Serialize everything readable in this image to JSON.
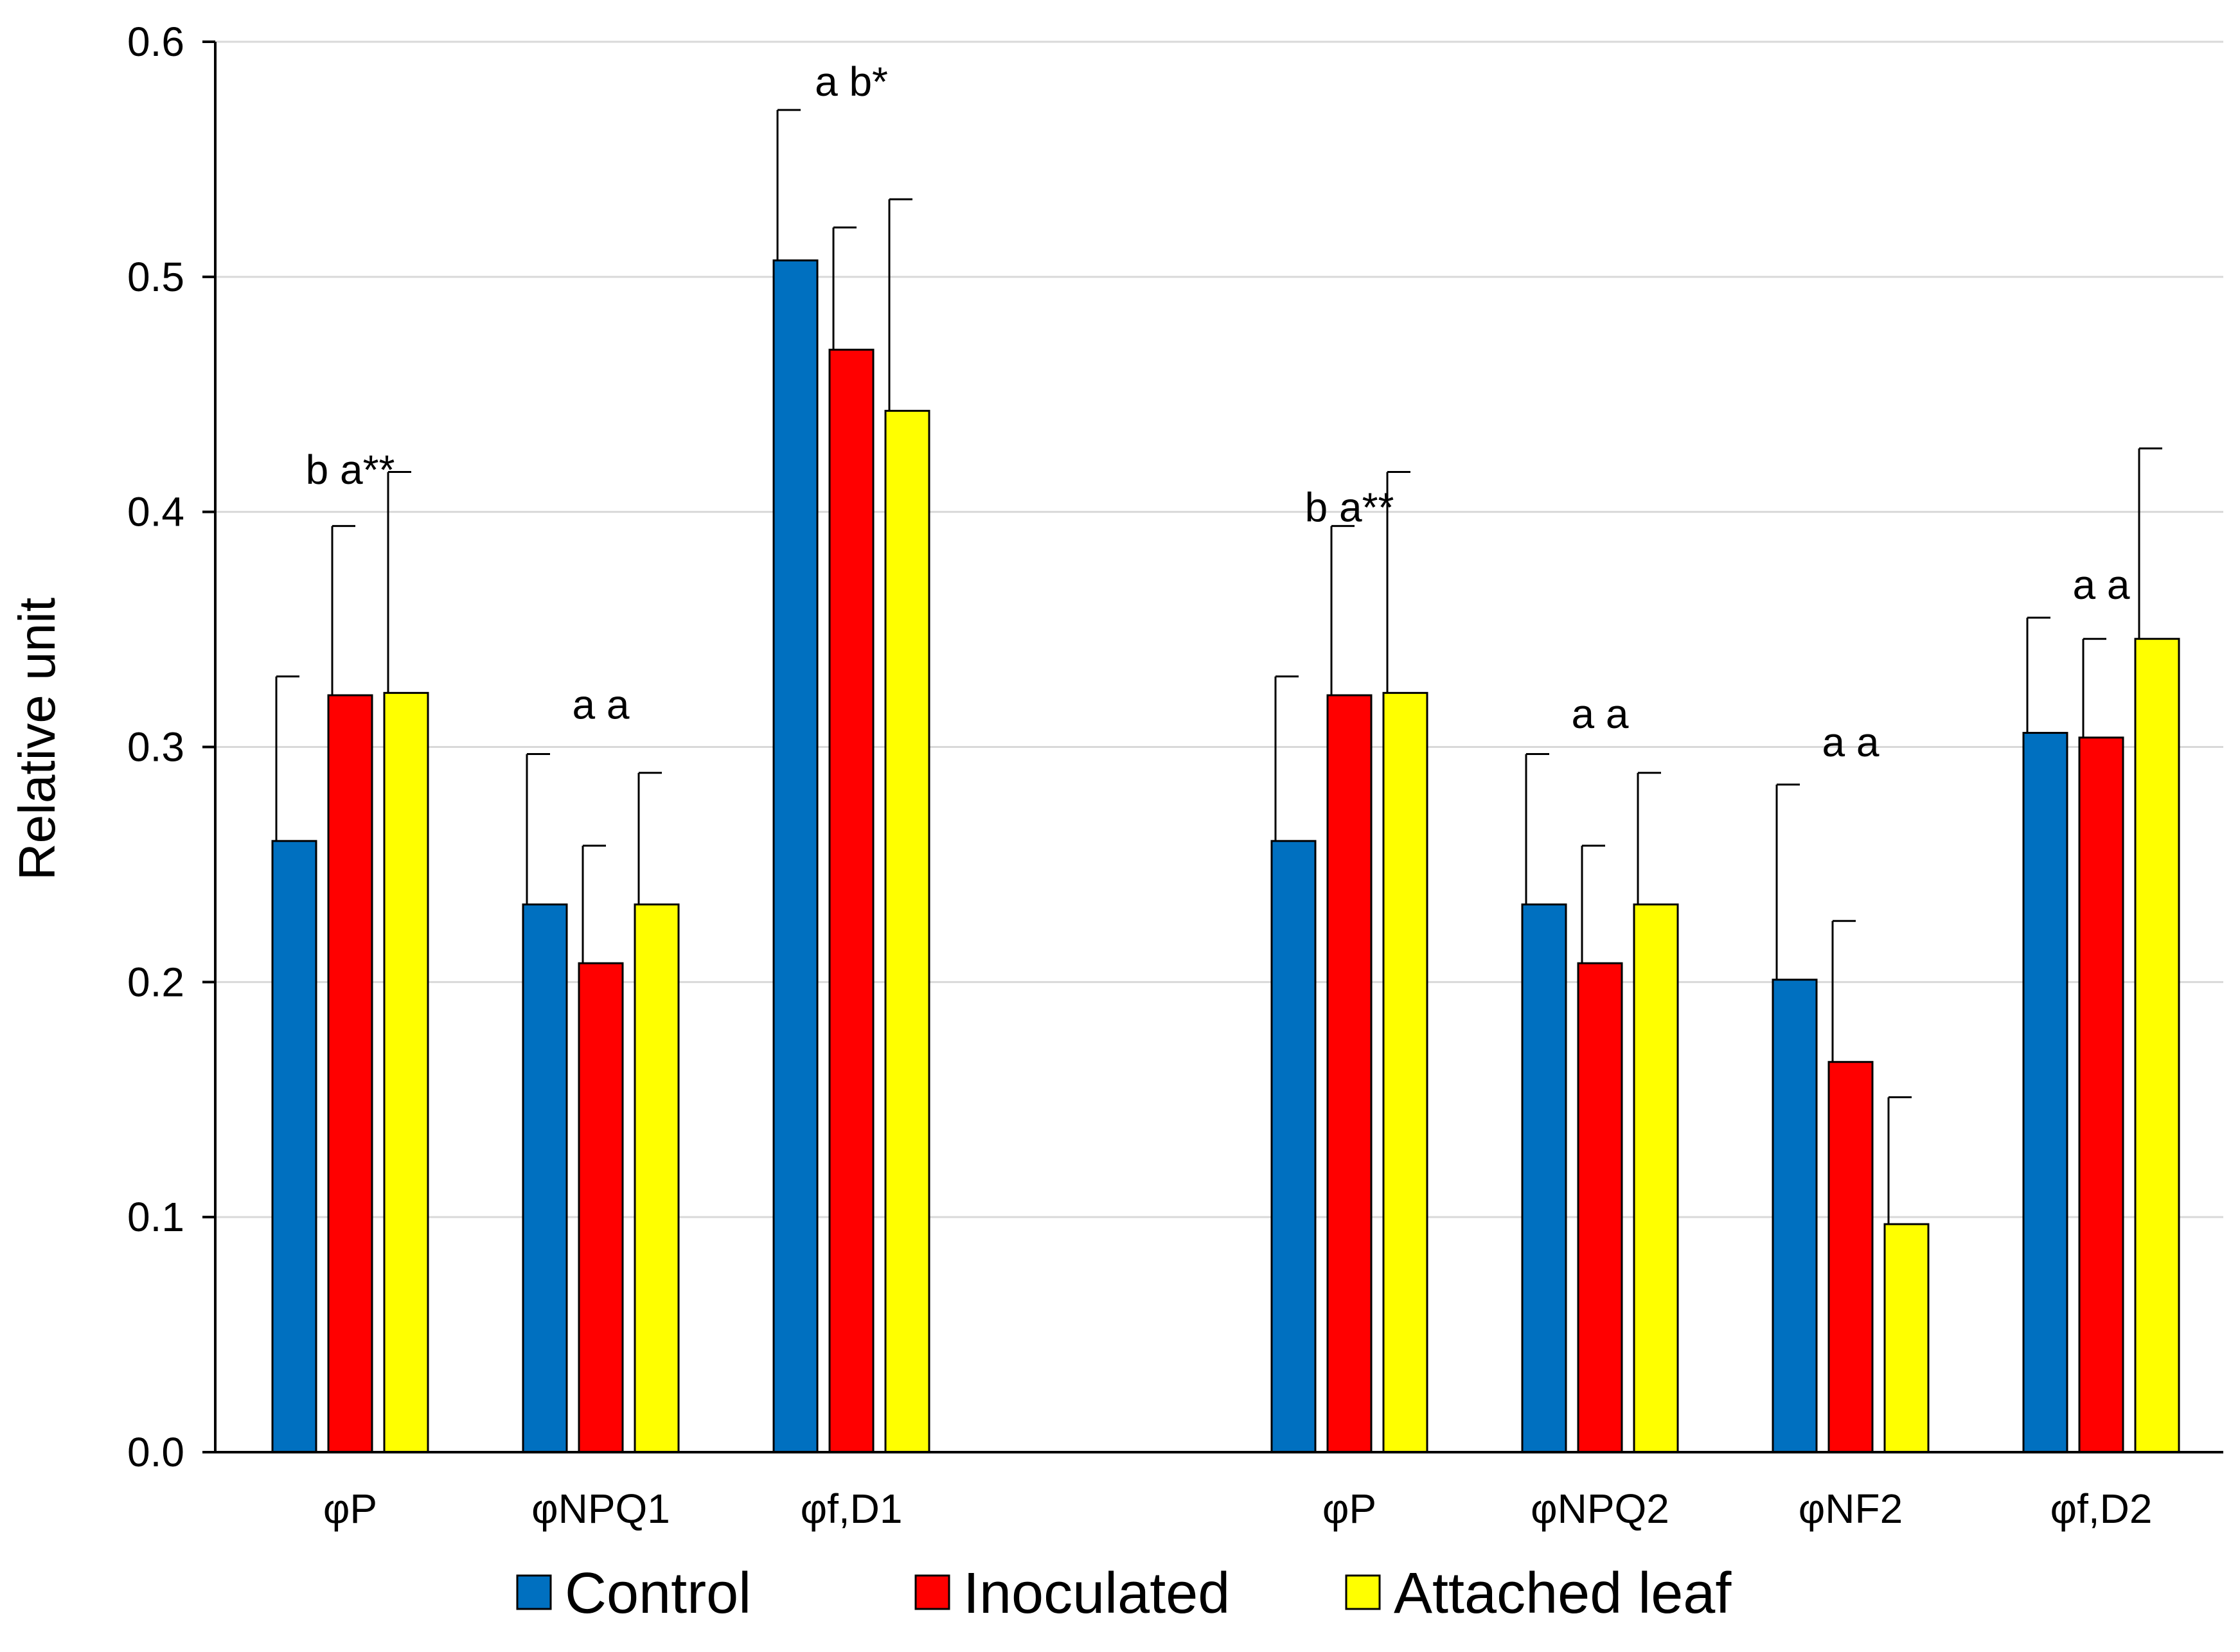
{
  "chart_data": {
    "type": "bar",
    "title": "",
    "xlabel": "",
    "ylabel": "Relative unit",
    "ylim": [
      0,
      0.6
    ],
    "yticks": [
      "0.0",
      "0.1",
      "0.2",
      "0.3",
      "0.4",
      "0.5",
      "0.6"
    ],
    "grid": true,
    "legend_position": "bottom",
    "categories": [
      "φP",
      "φNPQ1",
      "φf,D1",
      "φP",
      "φNPQ2",
      "φNF2",
      "φf,D2"
    ],
    "series": [
      {
        "name": "Control",
        "color": "#0070C0",
        "values": [
          0.26,
          0.233,
          0.507,
          0.26,
          0.233,
          0.201,
          0.306
        ],
        "errors": [
          0.07,
          0.064,
          0.064,
          0.07,
          0.064,
          0.083,
          0.049
        ]
      },
      {
        "name": "Inoculated",
        "color": "#FF0000",
        "values": [
          0.322,
          0.208,
          0.469,
          0.322,
          0.208,
          0.166,
          0.304
        ],
        "errors": [
          0.072,
          0.05,
          0.052,
          0.072,
          0.05,
          0.06,
          0.042
        ]
      },
      {
        "name": "Attached leaf",
        "color": "#FFFF00",
        "values": [
          0.323,
          0.233,
          0.443,
          0.323,
          0.233,
          0.097,
          0.346
        ],
        "errors": [
          0.094,
          0.056,
          0.09,
          0.094,
          0.056,
          0.054,
          0.081
        ]
      }
    ],
    "annotations": [
      {
        "category_index": 0,
        "text": "b a**",
        "y": 0.412
      },
      {
        "category_index": 1,
        "text": "a a",
        "y": 0.312
      },
      {
        "category_index": 2,
        "text": "a b*",
        "y": 0.577
      },
      {
        "category_index": 3,
        "text": "b a**",
        "y": 0.396
      },
      {
        "category_index": 4,
        "text": "a a",
        "y": 0.308
      },
      {
        "category_index": 5,
        "text": "a a",
        "y": 0.296
      },
      {
        "category_index": 6,
        "text": "a a",
        "y": 0.363
      }
    ]
  }
}
